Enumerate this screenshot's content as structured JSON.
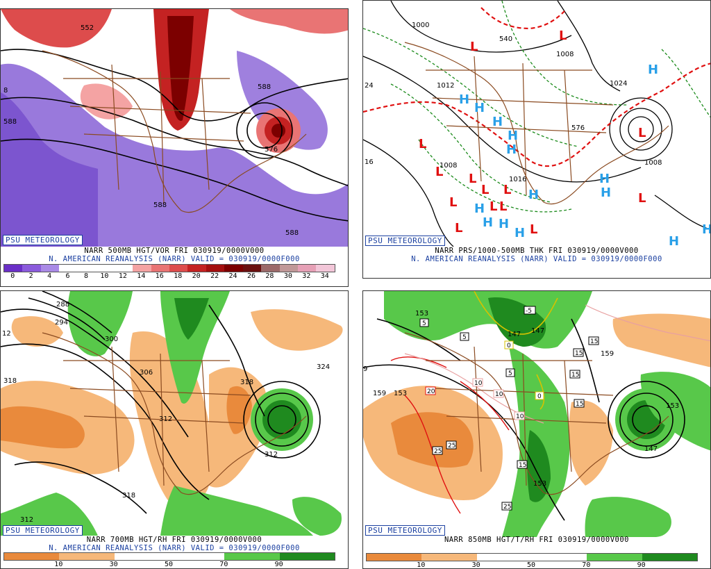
{
  "panels": {
    "p1": {
      "brand": "PSU METEOROLOGY",
      "title": "NARR 500MB HGT/VOR FRI 030919/0000V000",
      "subtitle": "N. AMERICAN REANALYSIS (NARR) VALID = 030919/0000F000",
      "scale_ticks": [
        "0",
        "2",
        "4",
        "6",
        "8",
        "10",
        "12",
        "14",
        "16",
        "18",
        "20",
        "22",
        "24",
        "26",
        "28",
        "30",
        "32",
        "34"
      ],
      "scale_colors": [
        "#6a2fc7",
        "#8b5bdc",
        "#a98ae6",
        "#ffffff",
        "#ffffff",
        "#ffffff",
        "#ffffff",
        "#f4a3a3",
        "#e97474",
        "#dd4c4c",
        "#c42222",
        "#a40f0f",
        "#7c0000",
        "#6a1010",
        "#9c6a6a",
        "#c09898",
        "#e6a0b6",
        "#f2c6d8"
      ],
      "labels": [
        "552",
        "588",
        "588",
        "576",
        "588",
        "588",
        "588",
        "588",
        "588",
        "8"
      ]
    },
    "p2": {
      "brand": "PSU METEOROLOGY",
      "title": "NARR PRS/1000-500MB THK FRI 030919/0000V000",
      "subtitle": "N. AMERICAN REANALYSIS (NARR) VALID = 030919/0000F000",
      "labels": [
        "1000",
        "1008",
        "540",
        "1008",
        "1012",
        "1016",
        "1024",
        "576",
        "1008",
        "1008",
        "1008",
        "1016",
        "1008",
        "24",
        "16"
      ],
      "highs": [
        "H",
        "H",
        "H",
        "H",
        "H",
        "H",
        "H",
        "H",
        "H",
        "H",
        "H",
        "H",
        "H",
        "H",
        "H"
      ],
      "lows": [
        "L",
        "L",
        "L",
        "L",
        "L",
        "L",
        "L",
        "L",
        "L",
        "L",
        "L",
        "L",
        "L",
        "L",
        "L"
      ]
    },
    "p3": {
      "brand": "PSU METEOROLOGY",
      "title": "NARR 700MB HGT/RH FRI 030919/0000V000",
      "subtitle": "N. AMERICAN REANALYSIS (NARR) VALID = 030919/0000F000",
      "scale_ticks": [
        "10",
        "30",
        "50",
        "70",
        "90"
      ],
      "labels": [
        "288",
        "294",
        "300",
        "306",
        "312",
        "318",
        "318",
        "312",
        "312",
        "318",
        "324",
        "306",
        "12"
      ]
    },
    "p4": {
      "brand": "PSU METEOROLOGY",
      "title": "NARR 850MB HGT/T/RH FRI 030919/0000V000",
      "scale_ticks": [
        "10",
        "30",
        "50",
        "70",
        "90"
      ],
      "labels": [
        "153",
        "153",
        "147",
        "159",
        "153",
        "153",
        "147",
        "9",
        "147",
        "153",
        "159"
      ],
      "temps": [
        "5",
        "5",
        "-5",
        "0",
        "0",
        "5",
        "15",
        "15",
        "15",
        "15",
        "20",
        "10",
        "10",
        "10",
        "25",
        "25",
        "15",
        "25"
      ]
    }
  },
  "colors": {
    "brand": "#1a3fa0",
    "rh_dry_dark": "#e98a3c",
    "rh_dry_light": "#f6b87a",
    "rh_wet_light": "#58c84a",
    "rh_wet_dark": "#1f8a1f",
    "vort_neg": "#8e6ad8",
    "vort_pos": "#d83a3a",
    "high_blue": "#2aa0e8",
    "low_red": "#e01010",
    "thickness_red": "#e01010",
    "thickness_green": "#1a8a1a",
    "geography": "#8a4a20"
  }
}
